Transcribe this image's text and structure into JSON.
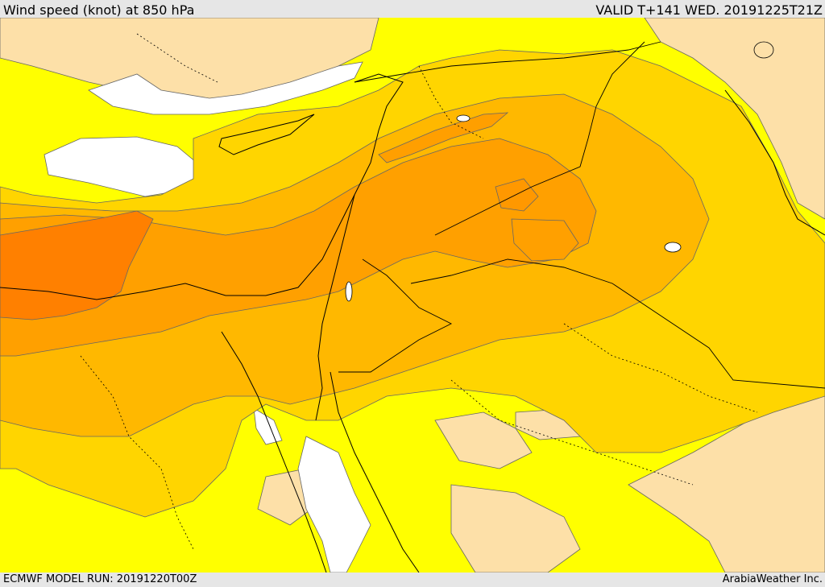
{
  "header": {
    "title": "Wind speed (knot) at 850 hPa",
    "valid": "VALID T+141 WED. 20191225T21Z"
  },
  "footer": {
    "model_run": "ECMWF MODEL RUN: 20191220T00Z",
    "credit": "ArabiaWeather Inc."
  },
  "colors": {
    "calm": "#ffffff",
    "light": "#fde0a8",
    "yellow": "#ffff00",
    "gold": "#ffd500",
    "amber": "#ffb800",
    "orange": "#ffa000",
    "deep_orange": "#ff8000",
    "contour": "#666666",
    "border": "#000000"
  }
}
